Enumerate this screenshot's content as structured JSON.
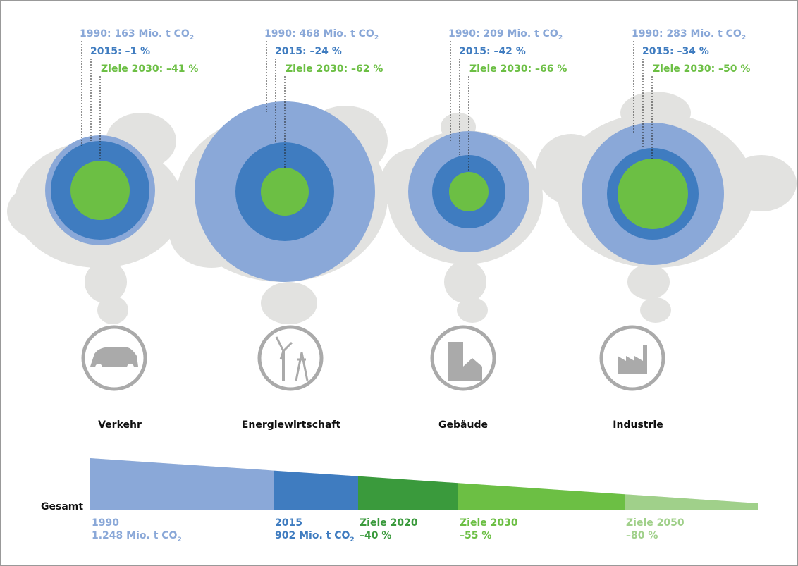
{
  "sectors": [
    {
      "name": "Verkehr",
      "line_1990": "1990: 163 Mio. t CO",
      "line_1990_sub": "2",
      "line_2015": "2015: –1 %",
      "line_2030": "Ziele 2030: –41 %"
    },
    {
      "name": "Energiewirtschaft",
      "line_1990": "1990: 468 Mio. t CO",
      "line_1990_sub": "2",
      "line_2015": "2015: –24 %",
      "line_2030": "Ziele 2030: –62 %"
    },
    {
      "name": "Gebäude",
      "line_1990": "1990: 209 Mio. t CO",
      "line_1990_sub": "2",
      "line_2015": "2015: –42 %",
      "line_2030": "Ziele 2030: –66 %"
    },
    {
      "name": "Industrie",
      "line_1990": "1990: 283 Mio. t CO",
      "line_1990_sub": "2",
      "line_2015": "2015: –34 %",
      "line_2030": "Ziele 2030: –50 %"
    }
  ],
  "total": {
    "label": "Gesamt",
    "segments": [
      {
        "title": "1990",
        "detail": "1.248 Mio. t CO",
        "detail_sub": "2"
      },
      {
        "title": "2015",
        "detail": "902 Mio. t CO",
        "detail_sub": "2"
      },
      {
        "title": "Ziele 2020",
        "detail": "–40 %"
      },
      {
        "title": "Ziele 2030",
        "detail": "–55 %"
      },
      {
        "title": "Ziele 2050",
        "detail": "–80 %"
      }
    ]
  }
}
